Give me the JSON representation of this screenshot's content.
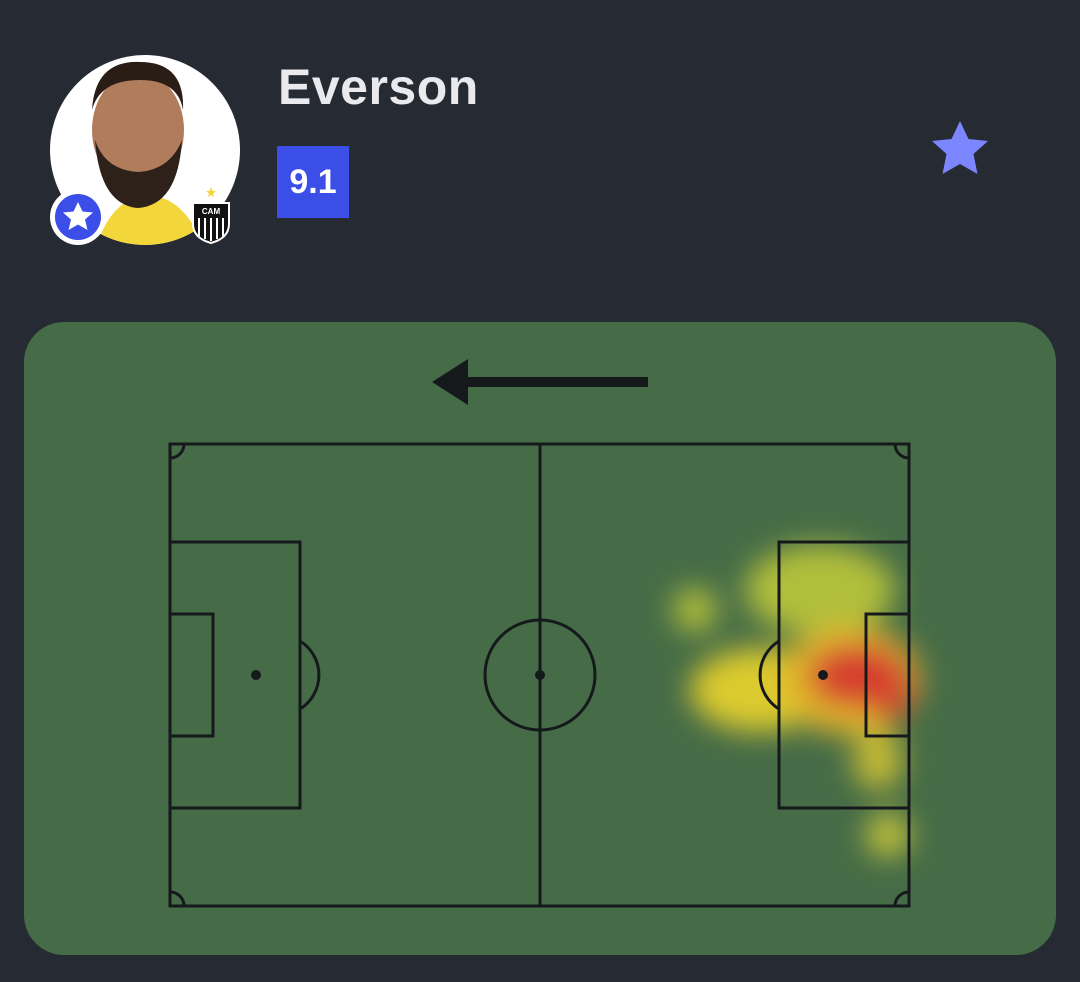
{
  "player": {
    "name": "Everson",
    "rating": "9.1",
    "team_badge": "CAM"
  }
}
